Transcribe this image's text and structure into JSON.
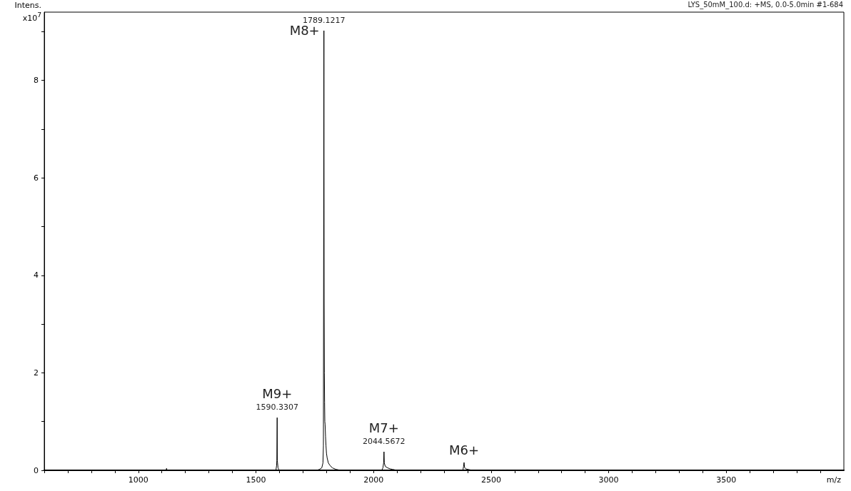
{
  "chart_data": {
    "type": "line",
    "title": "LYS_50mM_100.d: +MS, 0.0-5.0min #1-684",
    "xlabel": "m/z",
    "ylabel": "Intens.\nx10$^{7}$",
    "xlim": [
      600,
      4000
    ],
    "ylim": [
      0,
      9.4
    ],
    "marker": "none",
    "xticks": [
      {
        "value": 600,
        "label": null
      },
      {
        "value": 700,
        "label": null
      },
      {
        "value": 800,
        "label": null
      },
      {
        "value": 900,
        "label": null
      },
      1000,
      {
        "value": 1100,
        "label": null
      },
      {
        "value": 1200,
        "label": null
      },
      {
        "value": 1300,
        "label": null
      },
      {
        "value": 1400,
        "label": null
      },
      1500,
      {
        "value": 1600,
        "label": null
      },
      {
        "value": 1700,
        "label": null
      },
      {
        "value": 1800,
        "label": null
      },
      {
        "value": 1900,
        "label": null
      },
      2000,
      {
        "value": 2100,
        "label": null
      },
      {
        "value": 2200,
        "label": null
      },
      {
        "value": 2300,
        "label": null
      },
      {
        "value": 2400,
        "label": null
      },
      2500,
      {
        "value": 2600,
        "label": null
      },
      {
        "value": 2700,
        "label": null
      },
      {
        "value": 2800,
        "label": null
      },
      {
        "value": 2900,
        "label": null
      },
      3000,
      {
        "value": 3100,
        "label": null
      },
      {
        "value": 3200,
        "label": null
      },
      {
        "value": 3300,
        "label": null
      },
      {
        "value": 3400,
        "label": null
      },
      3500,
      {
        "value": 3600,
        "label": null
      },
      {
        "value": 3700,
        "label": null
      },
      {
        "value": 3800,
        "label": null
      },
      {
        "value": 3900,
        "label": null
      }
    ],
    "yticks": [
      0,
      {
        "value": 1,
        "label": null
      },
      2,
      {
        "value": 3,
        "label": null
      },
      4,
      {
        "value": 5,
        "label": null
      },
      6,
      {
        "value": 7,
        "label": null
      },
      8,
      {
        "value": 9,
        "label": null
      }
    ],
    "series": [
      {
        "color": "#000000",
        "x": [
          600,
          1118,
          1120,
          1122,
          1585,
          1588,
          1589,
          1590.33,
          1591,
          1592,
          1594,
          1597,
          1600,
          1760,
          1770,
          1780,
          1785,
          1787,
          1789.12,
          1790,
          1791,
          1792,
          1793,
          1794,
          1796,
          1798,
          1800,
          1803,
          1808,
          1815,
          1825,
          1840,
          1860,
          2035,
          2040,
          2043,
          2044.57,
          2046,
          2050,
          2060,
          2070,
          2080,
          2100,
          2380,
          2383,
          2385,
          2387,
          2392,
          2400,
          2420,
          2860,
          2862,
          2864,
          4000
        ],
        "values": [
          0,
          0,
          0.04,
          0,
          0,
          0.1,
          0.2,
          1.08,
          0.2,
          0.15,
          0.05,
          0.02,
          0,
          0,
          0.02,
          0.05,
          0.15,
          0.5,
          9.02,
          3.47,
          2.0,
          1.4,
          1.0,
          0.95,
          0.7,
          0.5,
          0.35,
          0.25,
          0.15,
          0.1,
          0.05,
          0.02,
          0,
          0,
          0.05,
          0.15,
          0.38,
          0.15,
          0.08,
          0.05,
          0.03,
          0.02,
          0,
          0,
          0.08,
          0.16,
          0.06,
          0.03,
          0.02,
          0,
          0,
          0.01,
          0,
          0
        ]
      }
    ],
    "annotations": [
      {
        "text": "1789.1217",
        "x": 1789.12,
        "y": 9.02
      },
      {
        "text": "M8+",
        "x": 1789.12,
        "y": 9.02
      },
      {
        "text": "1590.3307",
        "x": 1590.33,
        "y": 1.08
      },
      {
        "text": "M9+",
        "x": 1590.33,
        "y": 1.08
      },
      {
        "text": "2044.5672",
        "x": 2044.57,
        "y": 0.38
      },
      {
        "text": "M7+",
        "x": 2044.57,
        "y": 0.38
      },
      {
        "text": "M6+",
        "x": 2385,
        "y": 0.16
      }
    ]
  }
}
